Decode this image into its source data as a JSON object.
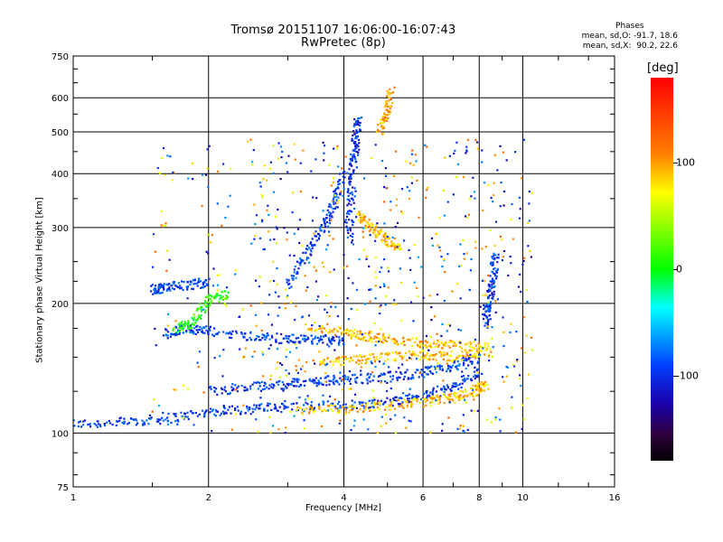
{
  "chart_data": {
    "type": "scatter",
    "title": "Tromsø 20151107 16:06:00-16:07:43",
    "subtitle": "RwPretec (8p)",
    "xlabel": "Frequency [MHz]",
    "ylabel": "Stationary phase Virtual Height [km]",
    "x_scale": "log",
    "y_scale": "log",
    "xlim": [
      1,
      16
    ],
    "ylim": [
      75,
      750
    ],
    "x_ticks": [
      1,
      2,
      4,
      6,
      8,
      10,
      16
    ],
    "x_tick_labels": [
      "1",
      "2",
      "4",
      "6",
      "8",
      "10",
      "16"
    ],
    "y_ticks": [
      75,
      100,
      200,
      300,
      400,
      500,
      600,
      750
    ],
    "y_tick_labels": [
      "75",
      "100",
      "200",
      "300",
      "400",
      "500",
      "600",
      "750"
    ],
    "grid": true,
    "phases_box": {
      "title": "Phases",
      "line1": "mean, sd,O: -91.7, 18.6",
      "line2": "mean, sd,X:  90.2, 22.6"
    },
    "colorbar": {
      "title": "[deg]",
      "ticks": [
        100,
        0,
        -100
      ],
      "tick_labels": [
        "100",
        "0",
        "-100"
      ],
      "range": [
        -180,
        180
      ]
    },
    "traces": [
      {
        "x": [
          1.0,
          1.3,
          1.6,
          2.0,
          2.5,
          3.0,
          4.0,
          5.0,
          6.0,
          7.0,
          8.0
        ],
        "y": [
          105,
          106,
          108,
          112,
          114,
          115,
          116,
          118,
          122,
          128,
          138
        ],
        "phase": -95
      },
      {
        "x": [
          3.1,
          4.0,
          5.0,
          6.0,
          7.0,
          7.8,
          8.3
        ],
        "y": [
          112,
          114,
          116,
          118,
          121,
          125,
          130
        ],
        "phase": 90
      },
      {
        "x": [
          2.0,
          2.5,
          3.0,
          3.5,
          4.0,
          5.0,
          6.0,
          7.0,
          8.0
        ],
        "y": [
          125,
          128,
          130,
          132,
          133,
          135,
          138,
          143,
          150
        ],
        "phase": -95
      },
      {
        "x": [
          3.5,
          4.2,
          5.0,
          6.0,
          7.0,
          8.5
        ],
        "y": [
          145,
          148,
          150,
          152,
          150,
          155
        ],
        "phase": 90
      },
      {
        "x": [
          1.6,
          1.8,
          2.0,
          2.5,
          3.0,
          3.5,
          4.0
        ],
        "y": [
          170,
          175,
          172,
          168,
          165,
          165,
          163
        ],
        "phase": -95
      },
      {
        "x": [
          3.3,
          4.0,
          4.5,
          5.0,
          6.0,
          7.0,
          8.5
        ],
        "y": [
          178,
          172,
          168,
          165,
          162,
          160,
          158
        ],
        "phase": 90
      },
      {
        "x": [
          1.7,
          1.85,
          2.0,
          2.2
        ],
        "y": [
          175,
          180,
          205,
          210
        ],
        "phase": 10
      },
      {
        "x": [
          1.5,
          1.6,
          1.8,
          2.0
        ],
        "y": [
          215,
          218,
          220,
          225
        ],
        "phase": -95
      },
      {
        "x": [
          3.0,
          3.3,
          3.6,
          3.8,
          4.0
        ],
        "y": [
          220,
          260,
          300,
          340,
          400
        ],
        "phase": -95
      },
      {
        "x": [
          4.1,
          4.15,
          4.2,
          4.25,
          4.3
        ],
        "y": [
          280,
          350,
          420,
          480,
          540
        ],
        "phase": -100
      },
      {
        "x": [
          4.3,
          4.6,
          5.0,
          5.3
        ],
        "y": [
          320,
          300,
          280,
          270
        ],
        "phase": 90
      },
      {
        "x": [
          8.2,
          8.4,
          8.6,
          8.7
        ],
        "y": [
          180,
          200,
          230,
          260
        ],
        "phase": -95
      },
      {
        "x": [
          4.8,
          5.0,
          5.1
        ],
        "y": [
          500,
          560,
          630
        ],
        "phase": 100
      }
    ]
  }
}
